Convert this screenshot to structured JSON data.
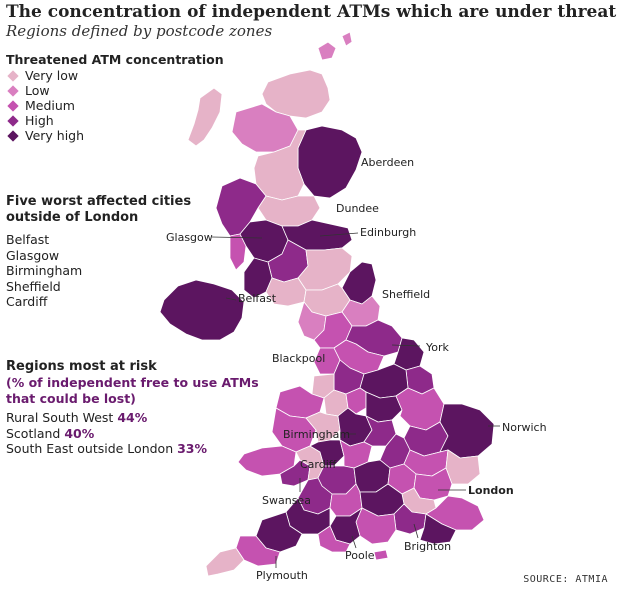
{
  "title": "The concentration of independent ATMs which are under threat",
  "subtitle": "Regions defined by postcode zones",
  "legend": {
    "title": "Threatened ATM concentration",
    "items": [
      {
        "label": "Very low",
        "color": "#e6b3c8"
      },
      {
        "label": "Low",
        "color": "#d97fc0"
      },
      {
        "label": "Medium",
        "color": "#c552b0"
      },
      {
        "label": "High",
        "color": "#8e2a8a"
      },
      {
        "label": "Very high",
        "color": "#5c1560"
      }
    ]
  },
  "worst_cities": {
    "title_line1": "Five worst affected cities",
    "title_line2": "outside of London",
    "items": [
      "Belfast",
      "Glasgow",
      "Birmingham",
      "Sheffield",
      "Cardiff"
    ]
  },
  "risk": {
    "title": "Regions most at risk",
    "sub_line1": "(% of independent free to use ATMs",
    "sub_line2": "that could be lost)",
    "items": [
      {
        "label": "Rural South West",
        "value": "44%"
      },
      {
        "label": "Scotland",
        "value": "40%"
      },
      {
        "label": "South East outside London",
        "value": "33%"
      }
    ]
  },
  "cities": {
    "aberdeen": "Aberdeen",
    "dundee": "Dundee",
    "edinburgh": "Edinburgh",
    "glasgow": "Glasgow",
    "belfast": "Belfast",
    "sheffield": "Sheffield",
    "york": "York",
    "blackpool": "Blackpool",
    "norwich": "Norwich",
    "birmingham": "Birmingham",
    "cardiff": "Cardiff",
    "london": "London",
    "swansea": "Swansea",
    "brighton": "Brighton",
    "poole": "Poole",
    "plymouth": "Plymouth"
  },
  "source": "SOURCE: ATMIA"
}
